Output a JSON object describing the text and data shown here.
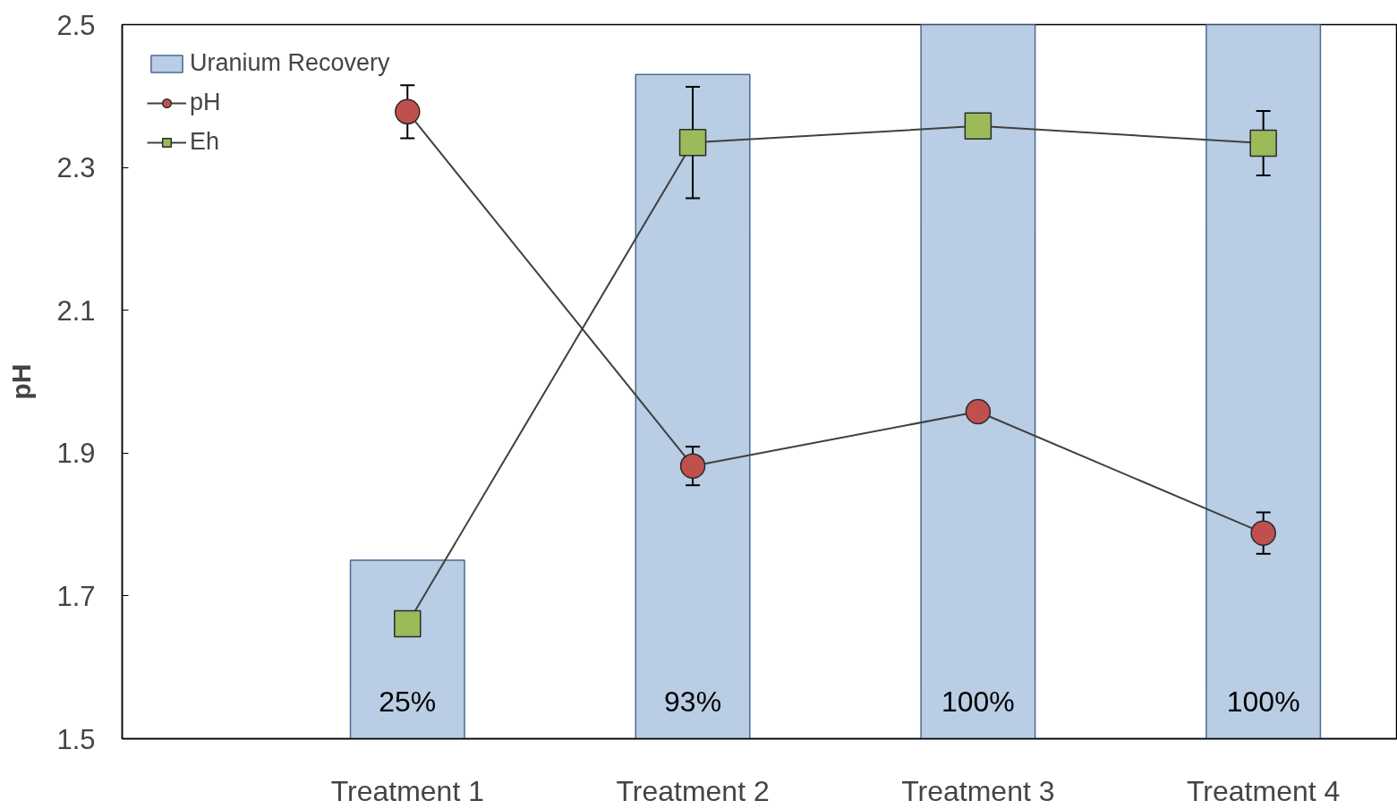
{
  "chart_data": {
    "type": "bar",
    "ylabel": "pH",
    "categories": [
      "Treatment 1",
      "Treatment 2",
      "Treatment 3",
      "Treatment 4"
    ],
    "ylim": [
      1.5,
      2.5
    ],
    "yticks": [
      1.5,
      1.7,
      1.9,
      2.1,
      2.3,
      2.5
    ],
    "y2lim": [
      0,
      100
    ],
    "series": [
      {
        "name": "Uranium Recovery",
        "axis": "y2",
        "color": "#b9cde5",
        "values": [
          25,
          93,
          100,
          100
        ],
        "value_labels": [
          "25%",
          "93%",
          "100%",
          "100%"
        ]
      },
      {
        "name": "pH",
        "type": "line",
        "marker": "circle",
        "color": "#c0504d",
        "values": [
          2.378,
          1.882,
          1.958,
          1.788
        ],
        "errors": [
          0.037,
          0.027,
          null,
          0.029
        ]
      },
      {
        "name": "Eh",
        "type": "line",
        "marker": "square",
        "color": "#9bbb59",
        "values": [
          1.661,
          2.335,
          2.358,
          2.334
        ],
        "errors": [
          null,
          0.078,
          null,
          0.045
        ]
      }
    ],
    "legend": "top left",
    "grid": false
  }
}
